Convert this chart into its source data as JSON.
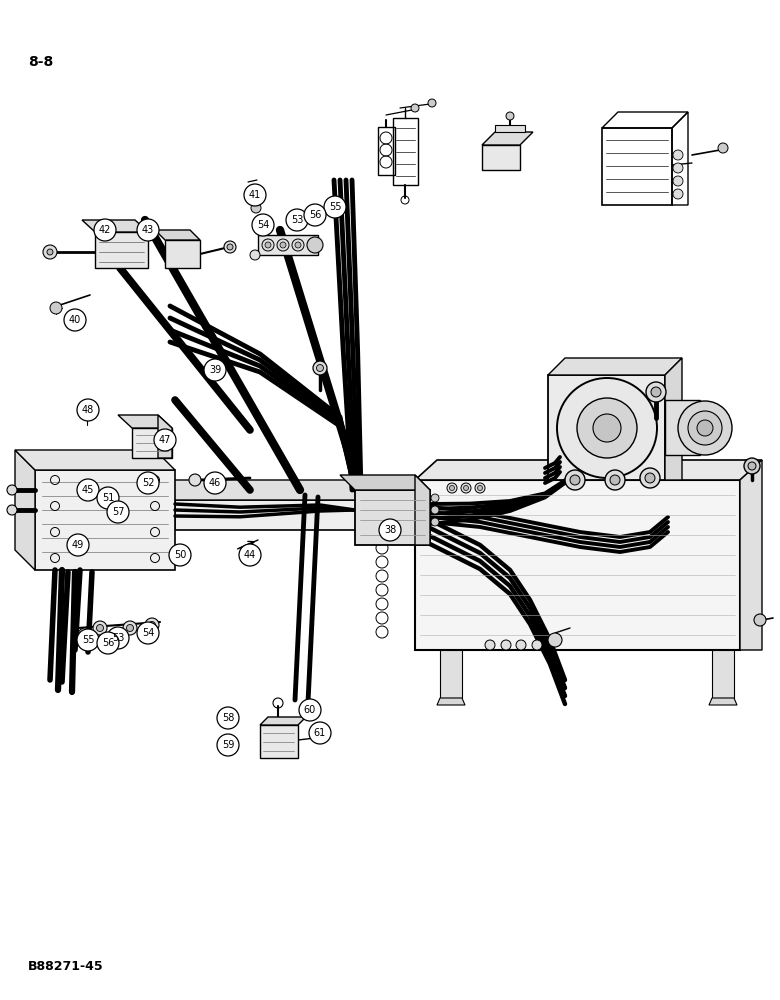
{
  "page_label": "8-8",
  "figure_ref": "B88271-45",
  "bg_color": "#ffffff",
  "circles": [
    [
      38,
      390,
      530
    ],
    [
      39,
      215,
      370
    ],
    [
      40,
      75,
      320
    ],
    [
      41,
      255,
      195
    ],
    [
      42,
      105,
      230
    ],
    [
      43,
      148,
      230
    ],
    [
      44,
      250,
      555
    ],
    [
      45,
      88,
      490
    ],
    [
      46,
      215,
      483
    ],
    [
      47,
      165,
      440
    ],
    [
      48,
      88,
      410
    ],
    [
      49,
      78,
      545
    ],
    [
      50,
      180,
      555
    ],
    [
      51,
      108,
      498
    ],
    [
      52,
      148,
      483
    ],
    [
      53,
      297,
      220
    ],
    [
      54,
      263,
      225
    ],
    [
      55,
      335,
      207
    ],
    [
      56,
      315,
      215
    ],
    [
      57,
      118,
      512
    ],
    [
      58,
      228,
      718
    ],
    [
      59,
      228,
      745
    ],
    [
      60,
      310,
      710
    ],
    [
      61,
      320,
      733
    ],
    [
      53,
      118,
      638
    ],
    [
      54,
      148,
      633
    ],
    [
      55,
      88,
      640
    ],
    [
      56,
      108,
      643
    ]
  ]
}
